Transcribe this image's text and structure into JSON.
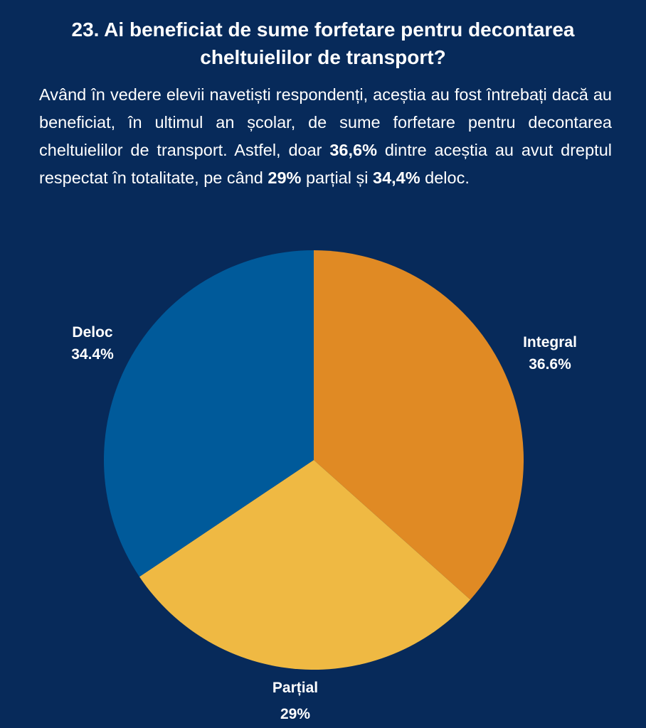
{
  "title": "23. Ai beneficiat de sume forfetare pentru decontarea cheltuielilor de transport?",
  "paragraph": {
    "p1": "Având în vedere elevii navetiști respondenți, aceștia au fost întrebați dacă au beneficiat, în ultimul an școlar, de sume forfetare pentru decontarea cheltuielilor de transport. Astfel, doar ",
    "b1": "36,6%",
    "p2": " dintre aceștia au avut dreptul respectat în totalitate, pe când ",
    "b2": "29%",
    "p3": " parțial și ",
    "b3": "34,4%",
    "p4": " deloc."
  },
  "chart_data": {
    "type": "pie",
    "title": "23. Ai beneficiat de sume forfetare pentru decontarea cheltuielilor de transport?",
    "slices": [
      {
        "label": "Integral",
        "value": 36.6,
        "value_label": "36.6%",
        "color": "#E08A24"
      },
      {
        "label": "Parțial",
        "value": 29,
        "value_label": "29%",
        "color": "#EFB943"
      },
      {
        "label": "Deloc",
        "value": 34.4,
        "value_label": "34.4%",
        "color": "#005A9A"
      }
    ],
    "start": "top",
    "direction": "clockwise"
  }
}
